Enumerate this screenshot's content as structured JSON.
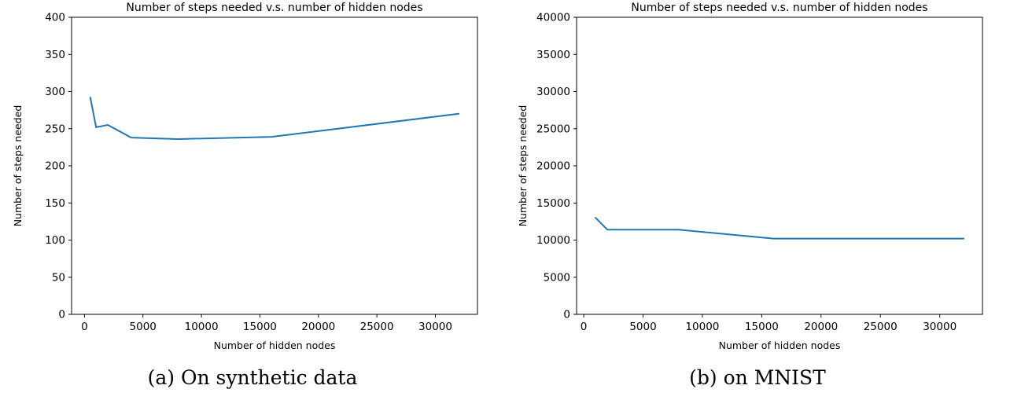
{
  "page": {
    "background_color": "#ffffff",
    "text_color": "#000000"
  },
  "chart_data": [
    {
      "type": "line",
      "title": "Number of steps needed v.s. number of hidden nodes",
      "xlabel": "Number of hidden nodes",
      "ylabel": "Number of steps needed",
      "caption": "(a) On synthetic data",
      "line_color": "#1f77b4",
      "grid": false,
      "legend": "none",
      "xlim": [
        -1100,
        33600
      ],
      "ylim": [
        0,
        400
      ],
      "xticks": [
        0,
        5000,
        10000,
        15000,
        20000,
        25000,
        30000
      ],
      "yticks": [
        0,
        50,
        100,
        150,
        200,
        250,
        300,
        350,
        400
      ],
      "x": [
        500,
        1000,
        2000,
        4000,
        8000,
        16000,
        32000
      ],
      "y": [
        292,
        252,
        255,
        238,
        236,
        239,
        270
      ]
    },
    {
      "type": "line",
      "title": "Number of steps needed v.s. number of hidden nodes",
      "xlabel": "Number of hidden nodes",
      "ylabel": "Number of steps needed",
      "caption": "(b) on MNIST",
      "line_color": "#1f77b4",
      "grid": false,
      "legend": "none",
      "xlim": [
        -600,
        33600
      ],
      "ylim": [
        0,
        40000
      ],
      "xticks": [
        0,
        5000,
        10000,
        15000,
        20000,
        25000,
        30000
      ],
      "yticks": [
        0,
        5000,
        10000,
        15000,
        20000,
        25000,
        30000,
        35000,
        40000
      ],
      "x": [
        1000,
        2000,
        4000,
        8000,
        16000,
        32000
      ],
      "y": [
        13000,
        11400,
        11400,
        11400,
        10200,
        10200
      ]
    }
  ]
}
